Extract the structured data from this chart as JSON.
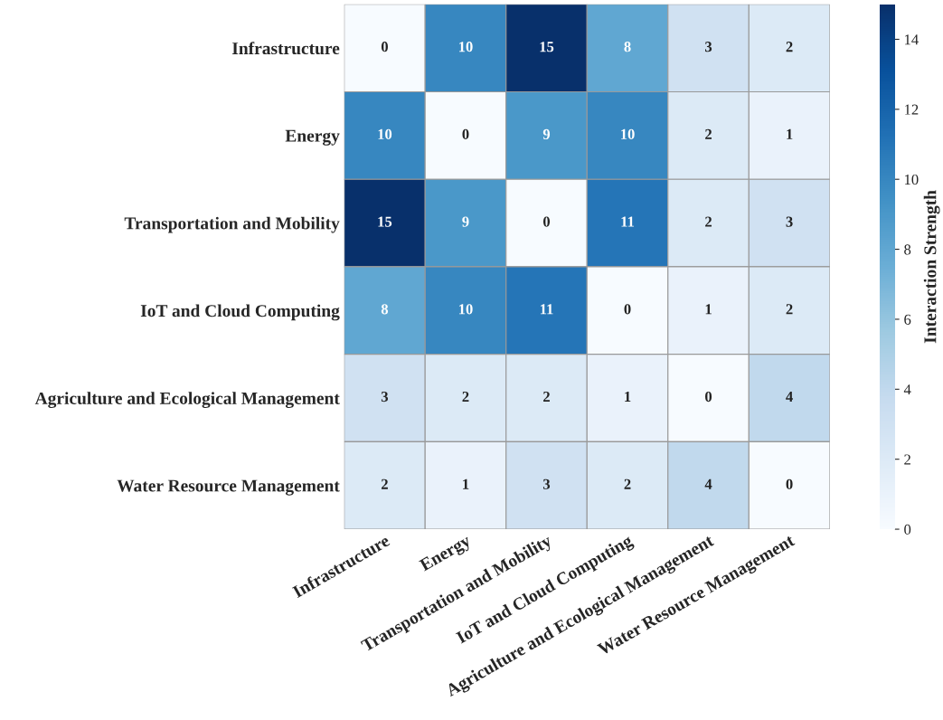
{
  "chart_data": {
    "type": "heatmap",
    "categories": [
      "Infrastructure",
      "Energy",
      "Transportation and Mobility",
      "IoT and Cloud Computing",
      "Agriculture and Ecological Management",
      "Water Resource Management"
    ],
    "y_categories": [
      "Infrastructure",
      "Energy",
      "Transportation and Mobility",
      "IoT and Cloud Computing",
      "Agriculture and Ecological Management",
      "Water Resource Management"
    ],
    "cells": [
      [
        0,
        10,
        15,
        8,
        3,
        2
      ],
      [
        10,
        0,
        9,
        10,
        2,
        1
      ],
      [
        15,
        9,
        0,
        11,
        2,
        3
      ],
      [
        8,
        10,
        11,
        0,
        1,
        2
      ],
      [
        3,
        2,
        2,
        1,
        0,
        4
      ],
      [
        2,
        1,
        3,
        2,
        4,
        0
      ]
    ],
    "data_labels": true,
    "clim": [
      0,
      15
    ],
    "cticks": [
      0,
      2,
      4,
      6,
      8,
      10,
      12,
      14
    ],
    "clabel": "Interaction Strength"
  }
}
